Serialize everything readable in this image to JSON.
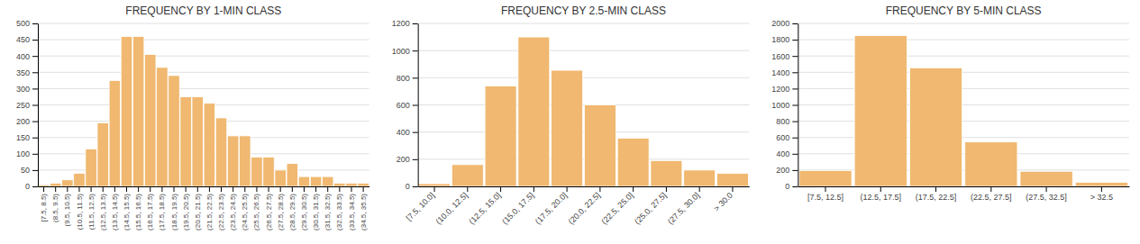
{
  "chart_data": [
    {
      "type": "bar",
      "title": "FREQUENCY BY 1-MIN CLASS",
      "categories": [
        "[7.5, 8.5)",
        "(8.5, 9.5)",
        "(9.5, 10.5)",
        "(10.5, 11.5)",
        "(11.5, 12.5)",
        "(12.5, 13.5)",
        "(13.5, 14.5)",
        "(14.5, 15.5)",
        "(15.5, 16.5)",
        "(16.5, 17.5)",
        "(17.5, 18.5)",
        "(18.5, 19.5)",
        "(19.5, 20.5)",
        "(20.5, 21.5)",
        "(21.5, 22.5)",
        "(22.5, 23.5)",
        "(23.5, 24.5)",
        "(24.5, 25.5)",
        "(25.5, 26.5)",
        "(26.5, 27.5)",
        "(27.5, 28.5)",
        "(28.5, 29.5)",
        "(29.5, 30.5)",
        "(30.5, 31.5)",
        "(31.5, 32.5)",
        "(32.5, 33.5)",
        "(33.5, 34.5)",
        "(34.5, 35.5)"
      ],
      "values": [
        5,
        10,
        20,
        40,
        115,
        195,
        325,
        460,
        460,
        405,
        365,
        340,
        275,
        275,
        255,
        210,
        155,
        155,
        90,
        90,
        50,
        70,
        30,
        30,
        30,
        10,
        10,
        10
      ],
      "color": "#f0b870",
      "ylim": [
        0,
        500
      ],
      "yticks": [
        0,
        50,
        100,
        150,
        200,
        250,
        300,
        350,
        400,
        450,
        500
      ],
      "grid": true
    },
    {
      "type": "bar",
      "title": "FREQUENCY BY 2.5-MIN CLASS",
      "categories": [
        "[7.5, 10.0]",
        "(10.0, 12.5]",
        "(12.5, 15.0]",
        "(15.0, 17.5]",
        "(17.5, 20.0]",
        "(20.0, 22.5]",
        "(22.5, 25.0]",
        "(25.0, 27.5]",
        "(27.5, 30.0]",
        "> 30.0"
      ],
      "values": [
        20,
        160,
        740,
        1100,
        855,
        600,
        355,
        190,
        120,
        95
      ],
      "color": "#f0b870",
      "ylim": [
        0,
        1200
      ],
      "yticks": [
        0,
        200,
        400,
        600,
        800,
        1000,
        1200
      ],
      "grid": true
    },
    {
      "type": "bar",
      "title": "FREQUENCY BY 5-MIN CLASS",
      "categories": [
        "[7.5, 12.5]",
        "(12.5, 17.5]",
        "(17.5, 22.5]",
        "(22.5, 27.5]",
        "(27.5, 32.5]",
        "> 32.5"
      ],
      "values": [
        195,
        1850,
        1455,
        545,
        185,
        50
      ],
      "color": "#f0b870",
      "ylim": [
        0,
        2000
      ],
      "yticks": [
        0,
        200,
        400,
        600,
        800,
        1000,
        1200,
        1400,
        1600,
        1800,
        2000
      ],
      "grid": true
    }
  ]
}
